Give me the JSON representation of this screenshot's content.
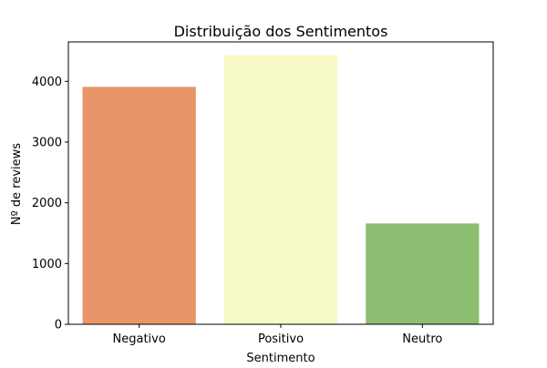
{
  "chart_data": {
    "type": "bar",
    "title": "Distribuição dos Sentimentos",
    "xlabel": "Sentimento",
    "ylabel": "Nº de reviews",
    "categories": [
      "Negativo",
      "Positivo",
      "Neutro"
    ],
    "values": [
      3910,
      4430,
      1660
    ],
    "colors": [
      "#e8956a",
      "#f6f8c5",
      "#8cbe72"
    ],
    "ylim": [
      0,
      4650
    ],
    "yticks": [
      0,
      1000,
      2000,
      3000,
      4000
    ],
    "grid": false,
    "legend": "none"
  }
}
